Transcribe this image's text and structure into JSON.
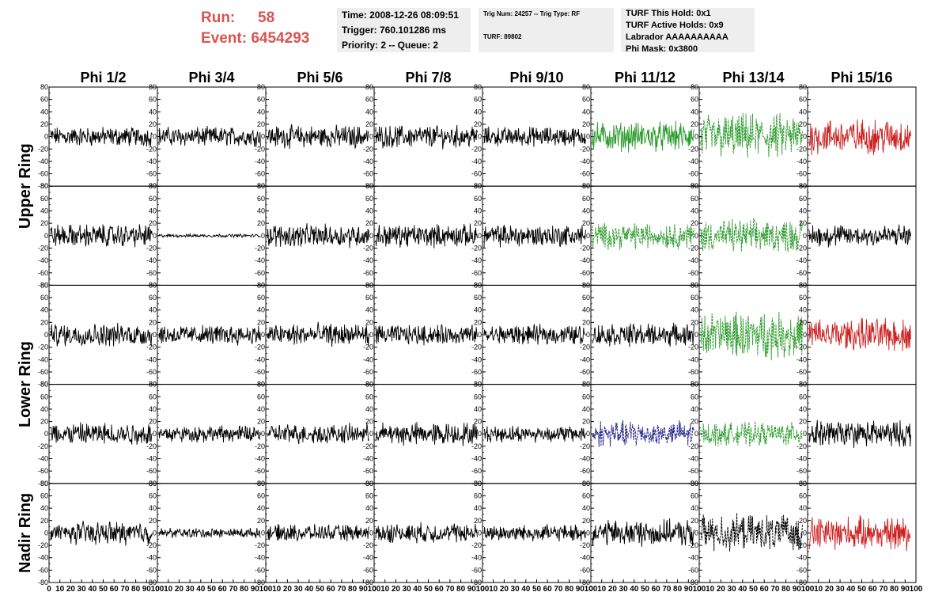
{
  "header": {
    "run_label": "Run:",
    "run_value": "58",
    "event_label": "Event:",
    "event_value": "6454293",
    "run_color": "#d9534f"
  },
  "info_time": {
    "time": "Time: 2008-12-26 08:09:51",
    "trigger": "Trigger: 760.101286 ms",
    "priority": "Priority: 2 -- Queue: 2"
  },
  "info_trig": {
    "trig": "Trig Num: 24257 -- Trig Type: RF",
    "turf": "TURF: 89802"
  },
  "info_turf": {
    "hold": "TURF This Hold: 0x1",
    "active": "TURF Active Holds: 0x9",
    "labrador": "Labrador AAAAAAAAAA",
    "phimask": "Phi Mask: 0x3800"
  },
  "columns": [
    "Phi 1/2",
    "Phi 3/4",
    "Phi 5/6",
    "Phi 7/8",
    "Phi 9/10",
    "Phi 11/12",
    "Phi 13/14",
    "Phi 15/16"
  ],
  "ring_labels": [
    "Upper Ring",
    "Lower Ring",
    "Nadir Ring"
  ],
  "y_ticks": [
    "80",
    "60",
    "40",
    "20",
    "0",
    "-20",
    "-40",
    "-60",
    "-80"
  ],
  "x_ticks": [
    "0",
    "10",
    "20",
    "30",
    "40",
    "50",
    "60",
    "70",
    "80",
    "90",
    "100"
  ],
  "colors": {
    "black": "#000000",
    "green": "#2a9a2a",
    "red": "#cc2222",
    "blue": "#22228a"
  },
  "chart_data": {
    "type": "line",
    "xlim": [
      0,
      100
    ],
    "ylim": [
      -80,
      80
    ],
    "rows": 5,
    "cols": 8,
    "traces": [
      [
        {
          "color": "black",
          "amp": 12
        },
        {
          "color": "black",
          "amp": 12
        },
        {
          "color": "black",
          "amp": 14
        },
        {
          "color": "black",
          "amp": 14
        },
        {
          "color": "black",
          "amp": 12
        },
        {
          "color": "green",
          "amp": 18
        },
        {
          "color": "green",
          "dash": true,
          "amp": 28
        },
        {
          "color": "red",
          "amp": 22
        }
      ],
      [
        {
          "color": "black",
          "amp": 14
        },
        {
          "color": "black",
          "amp": 2
        },
        {
          "color": "black",
          "amp": 14
        },
        {
          "color": "black",
          "amp": 14
        },
        {
          "color": "black",
          "amp": 14
        },
        {
          "color": "green",
          "dash": true,
          "amp": 16
        },
        {
          "color": "green",
          "dash": true,
          "amp": 20
        },
        {
          "color": "black",
          "amp": 14
        }
      ],
      [
        {
          "color": "black",
          "amp": 14
        },
        {
          "color": "black",
          "amp": 12
        },
        {
          "color": "black",
          "amp": 14
        },
        {
          "color": "black",
          "amp": 12
        },
        {
          "color": "black",
          "amp": 12
        },
        {
          "color": "black",
          "amp": 14
        },
        {
          "color": "green",
          "dash": true,
          "amp": 28
        },
        {
          "color": "red",
          "amp": 20
        }
      ],
      [
        {
          "color": "black",
          "amp": 14
        },
        {
          "color": "black",
          "amp": 10
        },
        {
          "color": "black",
          "amp": 12
        },
        {
          "color": "black",
          "amp": 14
        },
        {
          "color": "black",
          "amp": 10
        },
        {
          "color": "blue",
          "dash": true,
          "amp": 16
        },
        {
          "color": "green",
          "dash": true,
          "amp": 14
        },
        {
          "color": "black",
          "amp": 16
        }
      ],
      [
        {
          "color": "black",
          "amp": 14
        },
        {
          "color": "black",
          "amp": 6
        },
        {
          "color": "black",
          "amp": 10
        },
        {
          "color": "black",
          "amp": 12
        },
        {
          "color": "black",
          "amp": 10
        },
        {
          "color": "black",
          "amp": 16
        },
        {
          "color": "black",
          "dash": true,
          "amp": 22
        },
        {
          "color": "red",
          "amp": 20
        }
      ]
    ]
  }
}
